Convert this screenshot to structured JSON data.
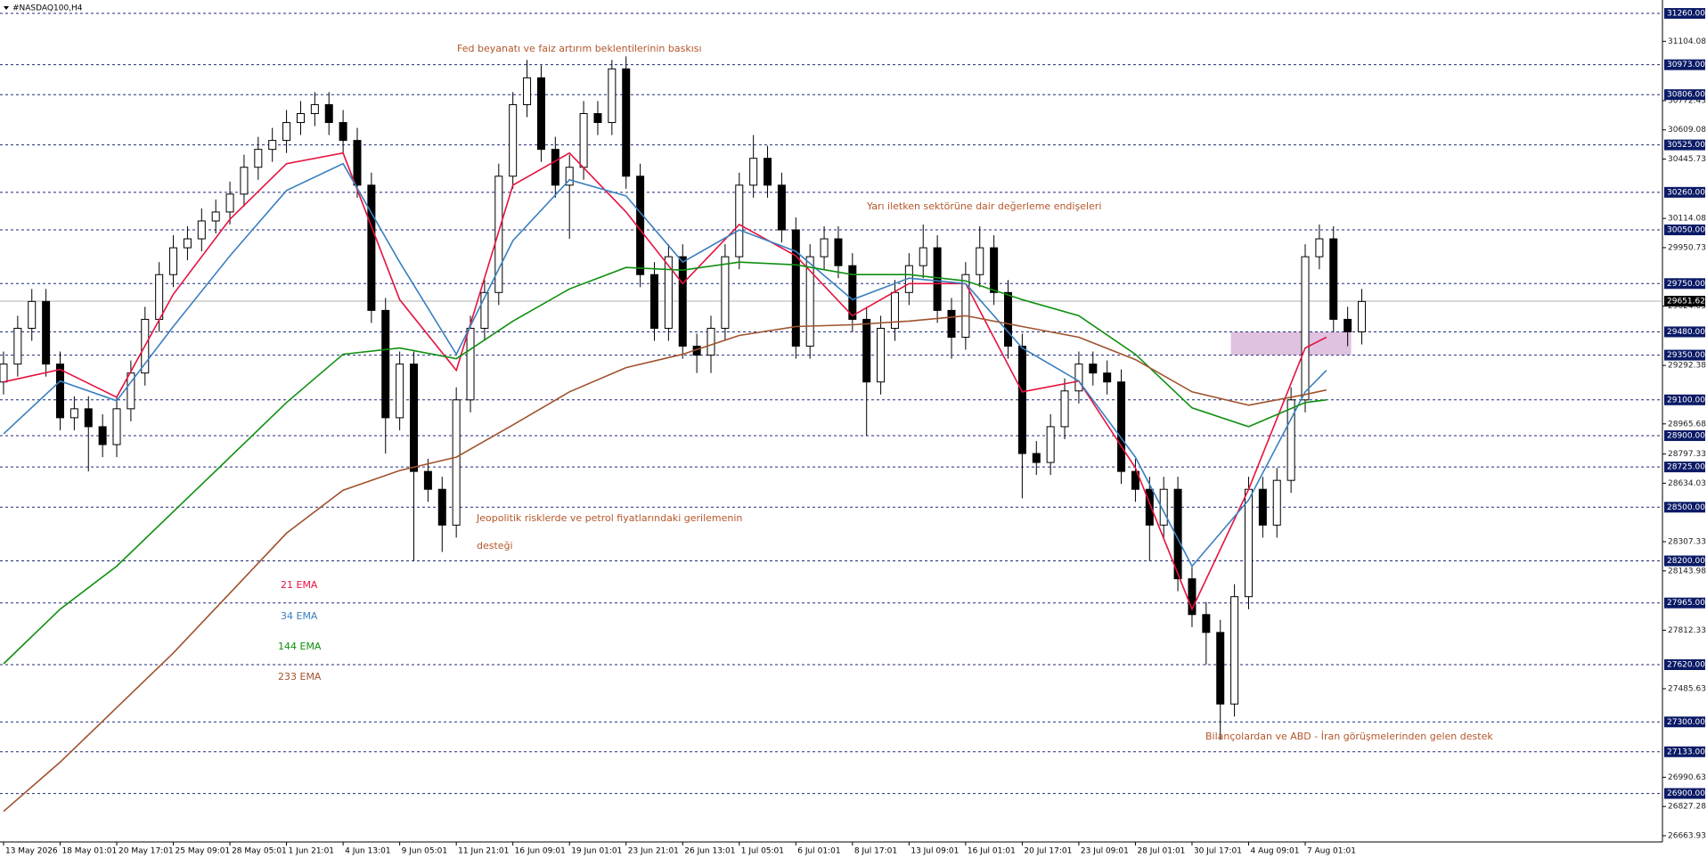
{
  "title": "#NASDAQ100,H4",
  "chart_data": {
    "type": "candlestick",
    "xlim": [
      -1,
      469
    ],
    "ylim": [
      26629,
      31305
    ],
    "xticks": [
      {
        "value": 0,
        "label": "13 May 2026"
      },
      {
        "value": 16,
        "label": "18 May 01:01"
      },
      {
        "value": 32,
        "label": "20 May 17:01"
      },
      {
        "value": 48,
        "label": "25 May 09:01"
      },
      {
        "value": 64,
        "label": "28 May 05:01"
      },
      {
        "value": 80,
        "label": "1 Jun 21:01"
      },
      {
        "value": 96,
        "label": "4 Jun 13:01"
      },
      {
        "value": 112,
        "label": "9 Jun 05:01"
      },
      {
        "value": 128,
        "label": "11 Jun 21:01"
      },
      {
        "value": 144,
        "label": "16 Jun 09:01"
      },
      {
        "value": 160,
        "label": "19 Jun 01:01"
      },
      {
        "value": 176,
        "label": "23 Jun 21:01"
      },
      {
        "value": 192,
        "label": "26 Jun 13:01"
      },
      {
        "value": 208,
        "label": "1 Jul 05:01"
      },
      {
        "value": 224,
        "label": "6 Jul 01:01"
      },
      {
        "value": 240,
        "label": "8 Jul 17:01"
      },
      {
        "value": 256,
        "label": "13 Jul 09:01"
      },
      {
        "value": 272,
        "label": "16 Jul 01:01"
      },
      {
        "value": 288,
        "label": "20 Jul 17:01"
      },
      {
        "value": 304,
        "label": "23 Jul 09:01"
      },
      {
        "value": 320,
        "label": "28 Jul 01:01"
      },
      {
        "value": 336,
        "label": "30 Jul 17:01"
      },
      {
        "value": 352,
        "label": "4 Aug 09:01"
      },
      {
        "value": 368,
        "label": "7 Aug 01:01"
      }
    ],
    "yticks": [
      31104.08,
      30772.43,
      30609.08,
      30445.73,
      30114.08,
      29950.73,
      29624.03,
      29292.38,
      28965.68,
      28797.33,
      28634.03,
      28307.33,
      28143.98,
      27812.33,
      27485.63,
      26990.63,
      26827.28,
      26663.93
    ],
    "levels": [
      {
        "value": 31260,
        "label": "31260.00"
      },
      {
        "value": 30973,
        "label": "30973.00"
      },
      {
        "value": 30806,
        "label": "30806.00"
      },
      {
        "value": 30525,
        "label": "30525.00"
      },
      {
        "value": 30260,
        "label": "30260.00"
      },
      {
        "value": 30050,
        "label": "30050.00"
      },
      {
        "value": 29750,
        "label": "29750.00"
      },
      {
        "value": 29480,
        "label": "29480.00"
      },
      {
        "value": 29350,
        "label": "29350.00"
      },
      {
        "value": 29100,
        "label": "29100.00"
      },
      {
        "value": 28900,
        "label": "28900.00"
      },
      {
        "value": 28725,
        "label": "28725.00"
      },
      {
        "value": 28500,
        "label": "28500.00"
      },
      {
        "value": 28200,
        "label": "28200.00"
      },
      {
        "value": 27965,
        "label": "27965.00"
      },
      {
        "value": 27620,
        "label": "27620.00"
      },
      {
        "value": 27300,
        "label": "27300.00"
      },
      {
        "value": 27133,
        "label": "27133.00"
      },
      {
        "value": 26900,
        "label": "26900.00"
      }
    ],
    "current_price": 29651.62,
    "candles": {
      "x": [
        0,
        4,
        8,
        12,
        16,
        20,
        24,
        28,
        32,
        36,
        40,
        44,
        48,
        52,
        56,
        60,
        64,
        68,
        72,
        76,
        80,
        84,
        88,
        92,
        96,
        100,
        104,
        108,
        112,
        116,
        120,
        124,
        128,
        132,
        136,
        140,
        144,
        148,
        152,
        156,
        160,
        164,
        168,
        172,
        176,
        180,
        184,
        188,
        192,
        196,
        200,
        204,
        208,
        212,
        216,
        220,
        224,
        228,
        232,
        236,
        240,
        244,
        248,
        252,
        256,
        260,
        264,
        268,
        272,
        276,
        280,
        284,
        288,
        292,
        296,
        300,
        304,
        308,
        312,
        316,
        320,
        324,
        328,
        332,
        336,
        340,
        344,
        348,
        352,
        356,
        360,
        364,
        368,
        372,
        376,
        380,
        384
      ],
      "open": [
        29200,
        29300,
        29500,
        29650,
        29300,
        29000,
        29050,
        28950,
        28850,
        29050,
        29250,
        29550,
        29800,
        29950,
        30000,
        30100,
        30150,
        30250,
        30400,
        30500,
        30550,
        30650,
        30700,
        30750,
        30650,
        30550,
        30300,
        29600,
        29000,
        29300,
        28700,
        28600,
        28400,
        29100,
        29500,
        29700,
        30350,
        30750,
        30900,
        30500,
        30300,
        30400,
        30700,
        30650,
        30950,
        30350,
        29800,
        29500,
        29900,
        29400,
        29350,
        29500,
        29900,
        30300,
        30450,
        30300,
        30050,
        29400,
        29900,
        30000,
        29850,
        29550,
        29200,
        29500,
        29700,
        29850,
        29950,
        29600,
        29450,
        29800,
        29950,
        29700,
        29400,
        28800,
        28750,
        28950,
        29150,
        29300,
        29250,
        29200,
        28700,
        28600,
        28400,
        28600,
        28100,
        27900,
        27800,
        27400,
        28000,
        28600,
        28400,
        28650,
        29100,
        29900,
        30000,
        29550,
        29480
      ],
      "high": [
        29370,
        29570,
        29720,
        29720,
        29370,
        29120,
        29120,
        29020,
        29120,
        29320,
        29620,
        29870,
        30020,
        30070,
        30170,
        30220,
        30320,
        30470,
        30570,
        30620,
        30720,
        30770,
        30820,
        30820,
        30720,
        30620,
        30370,
        29670,
        29370,
        29370,
        28770,
        28670,
        29170,
        29570,
        29770,
        30420,
        30820,
        31000,
        30970,
        30570,
        30470,
        30770,
        30770,
        31000,
        31020,
        30420,
        29870,
        29970,
        29970,
        29470,
        29570,
        29970,
        30370,
        30580,
        30520,
        30370,
        30120,
        29970,
        30070,
        30070,
        29920,
        29620,
        29570,
        29770,
        29920,
        30080,
        30020,
        29670,
        29870,
        30070,
        30020,
        29770,
        29470,
        28870,
        29020,
        29220,
        29370,
        29370,
        29320,
        29270,
        28770,
        28670,
        28670,
        28670,
        28170,
        27970,
        27870,
        28070,
        28670,
        28670,
        28720,
        29170,
        29970,
        30080,
        30070,
        29620,
        29720
      ],
      "low": [
        29130,
        29230,
        29430,
        29230,
        28930,
        28930,
        28700,
        28780,
        28780,
        28980,
        29180,
        29480,
        29730,
        29880,
        29930,
        30030,
        30080,
        30180,
        30330,
        30430,
        30480,
        30580,
        30630,
        30580,
        30480,
        30230,
        29530,
        28800,
        28930,
        28200,
        28530,
        28250,
        28330,
        29030,
        29430,
        29630,
        30280,
        30680,
        30430,
        30230,
        30000,
        30330,
        30580,
        30580,
        30280,
        29730,
        29430,
        29430,
        29330,
        29250,
        29250,
        29430,
        29830,
        30230,
        30230,
        29980,
        29330,
        29330,
        29830,
        29780,
        29480,
        28900,
        29130,
        29430,
        29630,
        29780,
        29530,
        29330,
        29380,
        29730,
        29630,
        29330,
        28550,
        28680,
        28680,
        28880,
        29080,
        29180,
        29130,
        28630,
        28530,
        28200,
        28330,
        28030,
        27830,
        27620,
        27200,
        27330,
        27930,
        28330,
        28330,
        28580,
        29030,
        29830,
        29480,
        29400,
        29410
      ],
      "close": [
        29300,
        29500,
        29650,
        29300,
        29000,
        29050,
        28950,
        28850,
        29050,
        29250,
        29550,
        29800,
        29950,
        30000,
        30100,
        30150,
        30250,
        30400,
        30500,
        30550,
        30650,
        30700,
        30750,
        30650,
        30550,
        30300,
        29600,
        29000,
        29300,
        28700,
        28600,
        28400,
        29100,
        29500,
        29700,
        30350,
        30750,
        30900,
        30500,
        30300,
        30400,
        30700,
        30650,
        30950,
        30350,
        29800,
        29500,
        29900,
        29400,
        29350,
        29500,
        29900,
        30300,
        30450,
        30300,
        30050,
        29400,
        29900,
        30000,
        29850,
        29550,
        29200,
        29500,
        29700,
        29850,
        29950,
        29600,
        29450,
        29800,
        29950,
        29700,
        29400,
        28800,
        28750,
        28950,
        29150,
        29300,
        29250,
        29200,
        28700,
        28600,
        28400,
        28600,
        28100,
        27900,
        27800,
        27400,
        28000,
        28600,
        28400,
        28650,
        29100,
        29900,
        30000,
        29550,
        29480,
        29650
      ]
    },
    "series": [
      {
        "name": "21 EMA",
        "color": "#e5123f",
        "x": [
          0,
          16,
          32,
          48,
          64,
          80,
          96,
          112,
          128,
          144,
          160,
          176,
          192,
          208,
          224,
          240,
          256,
          272,
          288,
          304,
          320,
          336,
          352,
          368,
          374
        ],
        "values": [
          29200,
          29270,
          29115,
          29690,
          30110,
          30420,
          30480,
          29660,
          29265,
          30300,
          30480,
          30150,
          29750,
          30080,
          29905,
          29570,
          29750,
          29750,
          29145,
          29205,
          28720,
          27930,
          28600,
          29390,
          29450
        ]
      },
      {
        "name": "34 EMA",
        "color": "#3a7fc0",
        "x": [
          0,
          16,
          32,
          48,
          64,
          80,
          96,
          112,
          128,
          144,
          160,
          176,
          192,
          208,
          224,
          240,
          256,
          272,
          288,
          304,
          320,
          336,
          352,
          368,
          374
        ],
        "values": [
          28910,
          29205,
          29095,
          29510,
          29905,
          30270,
          30420,
          29870,
          29355,
          29990,
          30330,
          30240,
          29870,
          30050,
          29930,
          29660,
          29780,
          29750,
          29390,
          29205,
          28780,
          28170,
          28540,
          29145,
          29265
        ]
      },
      {
        "name": "144 EMA",
        "color": "#0f8f0f",
        "x": [
          0,
          16,
          32,
          48,
          64,
          80,
          96,
          112,
          128,
          144,
          160,
          176,
          192,
          208,
          224,
          240,
          256,
          272,
          288,
          304,
          320,
          336,
          352,
          368,
          374
        ],
        "values": [
          27625,
          27930,
          28170,
          28475,
          28780,
          29085,
          29355,
          29390,
          29330,
          29540,
          29720,
          29840,
          29825,
          29870,
          29855,
          29800,
          29800,
          29765,
          29660,
          29570,
          29355,
          29055,
          28950,
          29085,
          29100
        ]
      },
      {
        "name": "233 EMA",
        "color": "#a0522d",
        "x": [
          0,
          16,
          32,
          48,
          64,
          80,
          96,
          112,
          128,
          144,
          160,
          176,
          192,
          208,
          224,
          240,
          256,
          272,
          288,
          304,
          320,
          336,
          352,
          368,
          374
        ],
        "values": [
          26800,
          27075,
          27380,
          27685,
          28020,
          28355,
          28595,
          28705,
          28780,
          28960,
          29145,
          29280,
          29355,
          29460,
          29510,
          29520,
          29540,
          29570,
          29510,
          29450,
          29325,
          29145,
          29070,
          29130,
          29155
        ]
      }
    ],
    "zone": {
      "x": [
        347,
        381
      ],
      "y": [
        29350,
        29480
      ],
      "color": "#d9b6da"
    },
    "annotations": [
      "Fed beyanatı ve faiz artırım beklentilerinin baskısı",
      "Yarı iletken sektörüne dair değerleme endişeleri",
      "Jeopolitik risklerde ve petrol fiyatlarındaki gerilemenin",
      "desteği",
      "Bilançolardan ve ABD - İran görüşmelerinden gelen destek"
    ]
  }
}
